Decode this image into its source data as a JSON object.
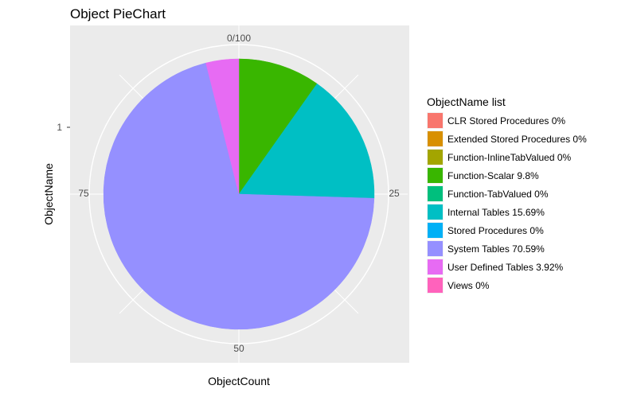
{
  "chart_data": {
    "type": "pie",
    "title": "Object PieChart",
    "xlabel": "ObjectCount",
    "ylabel": "ObjectName",
    "y_tick_labels": [
      "1"
    ],
    "radial_ticks": [
      {
        "value": 0,
        "label": "0/100"
      },
      {
        "value": 25,
        "label": "25"
      },
      {
        "value": 50,
        "label": "50"
      },
      {
        "value": 75,
        "label": "75"
      }
    ],
    "legend_title": "ObjectName list",
    "legend_position": "right",
    "grid": true,
    "background_color": "#ebebeb",
    "slices": [
      {
        "name": "CLR Stored Procedures 0%",
        "value": 0,
        "color": "#f8766d"
      },
      {
        "name": "Extended Stored Procedures 0%",
        "value": 0,
        "color": "#d89000"
      },
      {
        "name": "Function-InlineTabValued 0%",
        "value": 0,
        "color": "#a3a500"
      },
      {
        "name": "Function-Scalar 9.8%",
        "value": 9.8,
        "color": "#39b600"
      },
      {
        "name": "Function-TabValued 0%",
        "value": 0,
        "color": "#00bf7d"
      },
      {
        "name": "Internal Tables 15.69%",
        "value": 15.69,
        "color": "#00bfc4"
      },
      {
        "name": "Stored Procedures 0%",
        "value": 0,
        "color": "#00b0f6"
      },
      {
        "name": "System Tables 70.59%",
        "value": 70.59,
        "color": "#9590ff"
      },
      {
        "name": "User Defined Tables 3.92%",
        "value": 3.92,
        "color": "#e76bf3"
      },
      {
        "name": "Views 0%",
        "value": 0,
        "color": "#ff62bc"
      }
    ]
  }
}
